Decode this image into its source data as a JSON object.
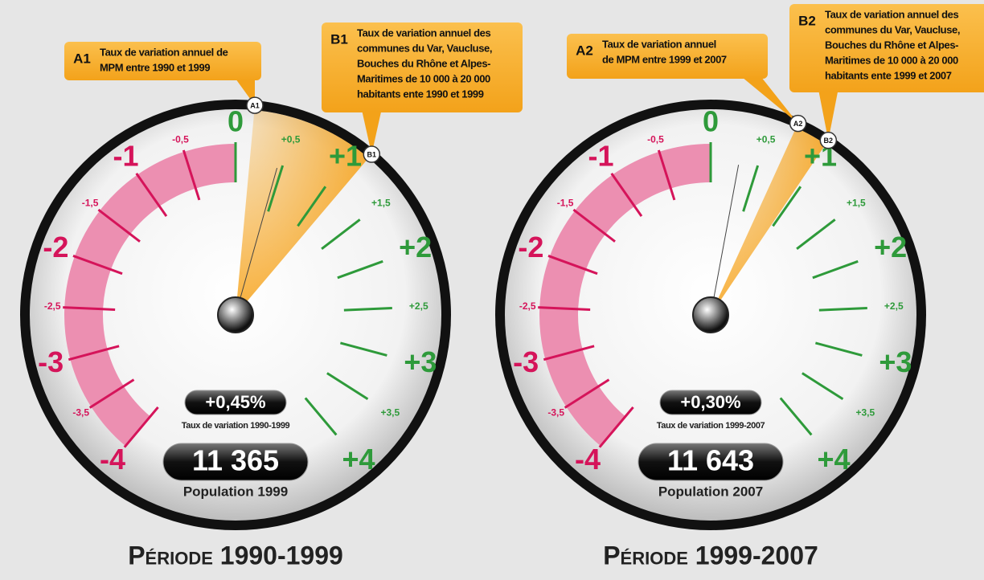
{
  "scale": {
    "min": -4,
    "max": 4,
    "ticks": [
      {
        "value": -4,
        "label": "-4"
      },
      {
        "value": -3.5,
        "label": "-3,5"
      },
      {
        "value": -3,
        "label": "-3"
      },
      {
        "value": -2.5,
        "label": "-2,5"
      },
      {
        "value": -2,
        "label": "-2"
      },
      {
        "value": -1.5,
        "label": "-1,5"
      },
      {
        "value": -1,
        "label": "-1"
      },
      {
        "value": -0.5,
        "label": "-0,5"
      },
      0,
      {
        "value": 0.5,
        "label": "+0,5"
      },
      {
        "value": 1,
        "label": "+1"
      },
      {
        "value": 1.5,
        "label": "+1,5"
      },
      {
        "value": 2,
        "label": "+2"
      },
      {
        "value": 2.5,
        "label": "+2,5"
      },
      {
        "value": 3,
        "label": "+3"
      },
      {
        "value": 3.5,
        "label": "+3,5"
      },
      {
        "value": 4,
        "label": "+4"
      }
    ]
  },
  "gauges": [
    {
      "marker_a": {
        "tag": "A1",
        "value": 0.15,
        "text": [
          "Taux de variation annuel de",
          "MPM entre 1990 et 1999"
        ]
      },
      "marker_b": {
        "tag": "B1",
        "value": 1.15,
        "text": [
          "Taux de variation annuel des",
          "communes du Var, Vaucluse,",
          "Bouches du Rhône et Alpes-",
          "Maritimes de 10 000 à 20 000",
          "habitants ente 1990 et 1999"
        ]
      },
      "value": 0.45,
      "value_label": "+0,45%",
      "value_caption": "Taux de variation 1990-1999",
      "population": "11 365",
      "population_caption": "Population 1999",
      "title": "Période 1990-1999"
    },
    {
      "marker_a": {
        "tag": "A2",
        "value": 0.7,
        "text": [
          "Taux de variation annuel",
          "de MPM entre 1999 et 2007"
        ]
      },
      "marker_b": {
        "tag": "B2",
        "value": 0.97,
        "text": [
          "Taux de variation annuel des",
          "communes du Var, Vaucluse,",
          "Bouches du Rhône et Alpes-",
          "Maritimes de 10 000 à 20 000",
          "habitants ente 1999 et 2007"
        ]
      },
      "value": 0.3,
      "value_label": "+0,30%",
      "value_caption": "Taux de variation 1999-2007",
      "population": "11 643",
      "population_caption": "Population 2007",
      "title": "Période 1999-2007"
    }
  ]
}
